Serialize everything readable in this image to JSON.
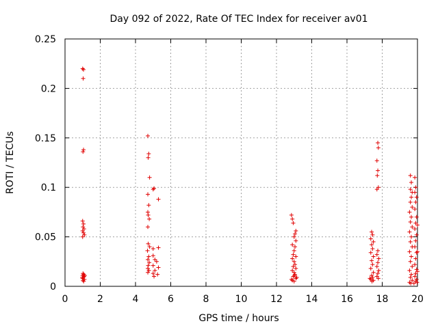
{
  "chart_data": {
    "type": "scatter",
    "title": "Day 092 of 2022, Rate Of TEC Index for receiver av01",
    "xlabel": "GPS time / hours",
    "ylabel": "ROTI / TECUs",
    "xlim": [
      0,
      20
    ],
    "ylim": [
      0,
      0.25
    ],
    "x_ticks": [
      0,
      2,
      4,
      6,
      8,
      10,
      12,
      14,
      16,
      18,
      20
    ],
    "x_tick_labels": [
      "0",
      "2",
      "4",
      "6",
      "8",
      "10",
      "12",
      "14",
      "16",
      "18",
      "20"
    ],
    "y_ticks": [
      0,
      0.05,
      0.1,
      0.15,
      0.2,
      0.25
    ],
    "y_tick_labels": [
      "0",
      "0.05",
      "0.1",
      "0.15",
      "0.2",
      "0.25"
    ],
    "grid": true,
    "marker": "+",
    "color": "#e00000",
    "series": [
      {
        "points": [
          [
            1.0,
            0.22
          ],
          [
            1.05,
            0.219
          ],
          [
            1.03,
            0.21
          ],
          [
            1.05,
            0.138
          ],
          [
            1.02,
            0.136
          ],
          [
            1.0,
            0.066
          ],
          [
            1.05,
            0.063
          ],
          [
            1.02,
            0.06
          ],
          [
            1.08,
            0.058
          ],
          [
            1.0,
            0.056
          ],
          [
            1.05,
            0.054
          ],
          [
            1.1,
            0.052
          ],
          [
            1.0,
            0.05
          ],
          [
            1.02,
            0.013
          ],
          [
            1.06,
            0.012
          ],
          [
            1.0,
            0.011
          ],
          [
            1.08,
            0.01
          ],
          [
            1.04,
            0.009
          ],
          [
            1.0,
            0.008
          ],
          [
            1.1,
            0.007
          ],
          [
            1.02,
            0.006
          ],
          [
            1.06,
            0.005
          ],
          [
            0.98,
            0.009
          ],
          [
            1.12,
            0.011
          ],
          [
            4.7,
            0.152
          ],
          [
            4.75,
            0.134
          ],
          [
            4.72,
            0.13
          ],
          [
            4.8,
            0.11
          ],
          [
            4.7,
            0.093
          ],
          [
            4.75,
            0.082
          ],
          [
            4.7,
            0.075
          ],
          [
            4.72,
            0.072
          ],
          [
            4.78,
            0.068
          ],
          [
            4.7,
            0.06
          ],
          [
            4.72,
            0.043
          ],
          [
            4.8,
            0.04
          ],
          [
            4.68,
            0.036
          ],
          [
            4.75,
            0.03
          ],
          [
            4.7,
            0.027
          ],
          [
            4.78,
            0.024
          ],
          [
            4.72,
            0.021
          ],
          [
            4.7,
            0.018
          ],
          [
            4.76,
            0.016
          ],
          [
            4.7,
            0.014
          ],
          [
            5.05,
            0.099
          ],
          [
            5.0,
            0.098
          ],
          [
            5.3,
            0.088
          ],
          [
            5.0,
            0.038
          ],
          [
            5.3,
            0.039
          ],
          [
            5.0,
            0.031
          ],
          [
            5.1,
            0.027
          ],
          [
            5.2,
            0.025
          ],
          [
            5.0,
            0.021
          ],
          [
            5.3,
            0.019
          ],
          [
            5.1,
            0.016
          ],
          [
            5.0,
            0.013
          ],
          [
            5.25,
            0.012
          ],
          [
            5.05,
            0.01
          ],
          [
            12.85,
            0.072
          ],
          [
            12.9,
            0.068
          ],
          [
            12.95,
            0.064
          ],
          [
            13.1,
            0.056
          ],
          [
            13.05,
            0.053
          ],
          [
            13.0,
            0.05
          ],
          [
            13.1,
            0.046
          ],
          [
            12.9,
            0.042
          ],
          [
            13.05,
            0.04
          ],
          [
            13.0,
            0.036
          ],
          [
            12.95,
            0.032
          ],
          [
            13.1,
            0.03
          ],
          [
            12.9,
            0.028
          ],
          [
            13.0,
            0.025
          ],
          [
            13.05,
            0.022
          ],
          [
            12.95,
            0.02
          ],
          [
            13.1,
            0.018
          ],
          [
            12.9,
            0.016
          ],
          [
            13.0,
            0.014
          ],
          [
            13.05,
            0.012
          ],
          [
            12.95,
            0.01
          ],
          [
            13.1,
            0.008
          ],
          [
            12.9,
            0.006
          ],
          [
            13.0,
            0.005
          ],
          [
            12.85,
            0.007
          ],
          [
            13.15,
            0.009
          ],
          [
            13.02,
            0.011
          ],
          [
            17.4,
            0.055
          ],
          [
            17.45,
            0.052
          ],
          [
            17.35,
            0.048
          ],
          [
            17.5,
            0.045
          ],
          [
            17.4,
            0.042
          ],
          [
            17.45,
            0.038
          ],
          [
            17.35,
            0.034
          ],
          [
            17.5,
            0.03
          ],
          [
            17.4,
            0.026
          ],
          [
            17.45,
            0.022
          ],
          [
            17.35,
            0.018
          ],
          [
            17.5,
            0.014
          ],
          [
            17.4,
            0.011
          ],
          [
            17.45,
            0.009
          ],
          [
            17.35,
            0.007
          ],
          [
            17.5,
            0.006
          ],
          [
            17.42,
            0.005
          ],
          [
            17.3,
            0.008
          ],
          [
            17.75,
            0.145
          ],
          [
            17.78,
            0.14
          ],
          [
            17.7,
            0.127
          ],
          [
            17.75,
            0.117
          ],
          [
            17.72,
            0.112
          ],
          [
            17.78,
            0.1
          ],
          [
            17.7,
            0.098
          ],
          [
            17.75,
            0.036
          ],
          [
            17.7,
            0.032
          ],
          [
            17.8,
            0.028
          ],
          [
            17.75,
            0.024
          ],
          [
            17.7,
            0.02
          ],
          [
            17.8,
            0.016
          ],
          [
            17.75,
            0.013
          ],
          [
            17.7,
            0.01
          ],
          [
            17.78,
            0.008
          ],
          [
            19.6,
            0.112
          ],
          [
            19.65,
            0.105
          ],
          [
            19.6,
            0.098
          ],
          [
            19.7,
            0.095
          ],
          [
            19.65,
            0.09
          ],
          [
            19.6,
            0.085
          ],
          [
            19.7,
            0.08
          ],
          [
            19.55,
            0.075
          ],
          [
            19.65,
            0.07
          ],
          [
            19.6,
            0.065
          ],
          [
            19.7,
            0.06
          ],
          [
            19.55,
            0.055
          ],
          [
            19.65,
            0.05
          ],
          [
            19.6,
            0.045
          ],
          [
            19.7,
            0.04
          ],
          [
            19.55,
            0.035
          ],
          [
            19.65,
            0.03
          ],
          [
            19.6,
            0.025
          ],
          [
            19.7,
            0.02
          ],
          [
            19.55,
            0.016
          ],
          [
            19.65,
            0.012
          ],
          [
            19.6,
            0.009
          ],
          [
            19.7,
            0.006
          ],
          [
            19.55,
            0.004
          ],
          [
            19.62,
            0.003
          ],
          [
            19.85,
            0.11
          ],
          [
            19.9,
            0.1
          ],
          [
            19.85,
            0.095
          ],
          [
            19.95,
            0.09
          ],
          [
            19.9,
            0.085
          ],
          [
            19.85,
            0.078
          ],
          [
            19.95,
            0.07
          ],
          [
            19.9,
            0.064
          ],
          [
            19.85,
            0.058
          ],
          [
            19.95,
            0.052
          ],
          [
            19.9,
            0.046
          ],
          [
            19.85,
            0.04
          ],
          [
            19.95,
            0.034
          ],
          [
            19.9,
            0.028
          ],
          [
            19.85,
            0.022
          ],
          [
            19.95,
            0.017
          ],
          [
            19.9,
            0.013
          ],
          [
            19.85,
            0.01
          ],
          [
            19.95,
            0.007
          ],
          [
            19.9,
            0.005
          ],
          [
            19.8,
            0.003
          ],
          [
            19.98,
            0.004
          ],
          [
            20.0,
            0.062
          ],
          [
            20.0,
            0.035
          ],
          [
            20.0,
            0.015
          ]
        ]
      }
    ]
  }
}
